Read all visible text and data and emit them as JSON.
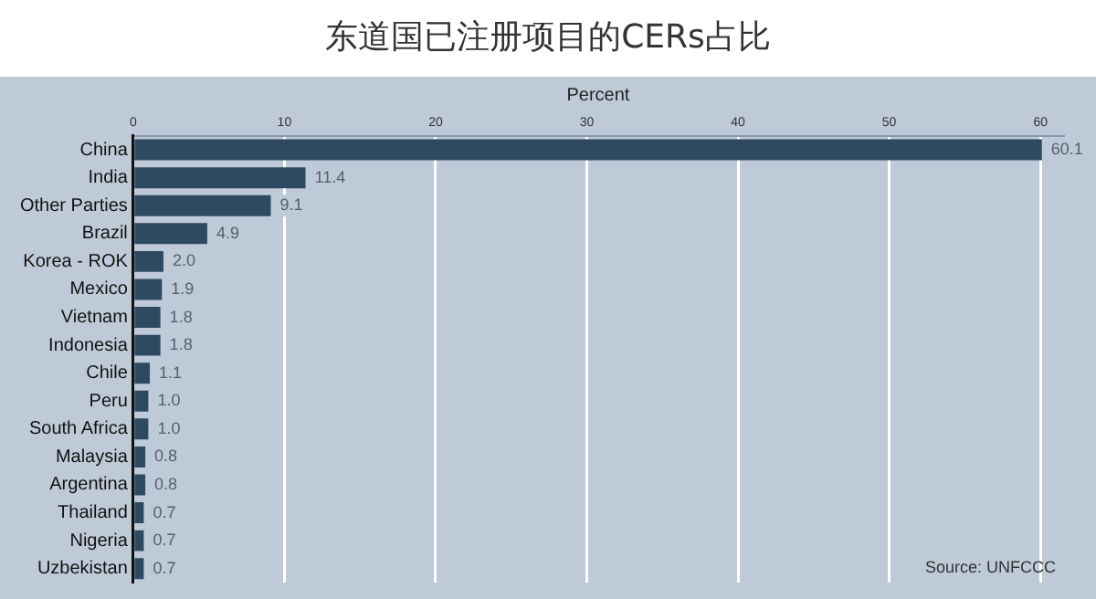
{
  "chart_data": {
    "type": "bar",
    "orientation": "horizontal",
    "title": "东道国已注册项目的CERs占比",
    "xlabel": "Percent",
    "categories": [
      "China",
      "India",
      "Other Parties",
      "Brazil",
      "Korea - ROK",
      "Mexico",
      "Vietnam",
      "Indonesia",
      "Chile",
      "Peru",
      "South Africa",
      "Malaysia",
      "Argentina",
      "Thailand",
      "Nigeria",
      "Uzbekistan"
    ],
    "values": [
      60.1,
      11.4,
      9.1,
      4.9,
      2.0,
      1.9,
      1.8,
      1.8,
      1.1,
      1.0,
      1.0,
      0.8,
      0.8,
      0.7,
      0.7,
      0.7
    ],
    "value_labels": [
      "60.1",
      "11.4",
      "9.1",
      "4.9",
      "2.0",
      "1.9",
      "1.8",
      "1.8",
      "1.1",
      "1.0",
      "1.0",
      "0.8",
      "0.8",
      "0.7",
      "0.7",
      "0.7"
    ],
    "color": "#2e4a62",
    "xlim": [
      0,
      61.5
    ],
    "xticks": [
      0,
      10,
      20,
      30,
      40,
      50,
      60
    ],
    "grid": "x",
    "legend": false,
    "annotations": [
      "Source: UNFCCC"
    ]
  }
}
